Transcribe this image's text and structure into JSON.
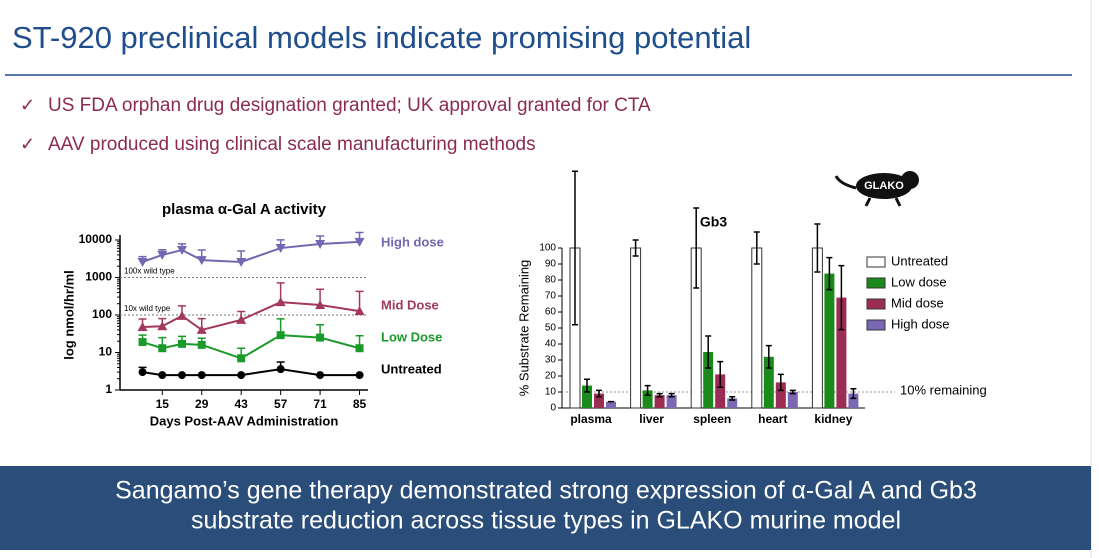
{
  "header": {
    "title": "ST-920 preclinical models indicate promising potential"
  },
  "bullets": [
    "US FDA orphan drug designation granted; UK approval granted for CTA",
    "AAV produced using clinical scale manufacturing methods"
  ],
  "icon_label": "GLAKO",
  "banner": {
    "lines": [
      "Sangamo’s gene therapy demonstrated strong expression of α-Gal A and Gb3",
      "substrate reduction across tissue types in GLAKO murine model"
    ]
  },
  "chart_data": [
    {
      "type": "line",
      "title": "plasma α-Gal A activity",
      "ylabel": "log nmol/hr/ml",
      "xlabel": "Days Post-AAV Administration",
      "log_y": true,
      "x": [
        8,
        15,
        22,
        29,
        43,
        57,
        71,
        85
      ],
      "xlim": [
        0,
        88
      ],
      "xticks": [
        15,
        29,
        43,
        57,
        71,
        85
      ],
      "ylim": [
        1,
        10000
      ],
      "yticks": [
        1,
        10,
        100,
        1000,
        10000
      ],
      "reference_lines": [
        {
          "value": 1000,
          "label": "100x wild type"
        },
        {
          "value": 100,
          "label": "10x wild type"
        }
      ],
      "series": [
        {
          "name": "High dose",
          "color": "#7466b0",
          "marker": "triangle-down",
          "values": [
            2600,
            4000,
            5400,
            2900,
            2600,
            6100,
            7800,
            8900
          ],
          "errors": [
            1000,
            1500,
            2500,
            2500,
            2500,
            4000,
            5000,
            7000
          ]
        },
        {
          "name": "Mid Dose",
          "color": "#a3385f",
          "marker": "triangle",
          "values": [
            48,
            50,
            95,
            40,
            74,
            220,
            185,
            127
          ],
          "errors": [
            30,
            30,
            80,
            40,
            50,
            500,
            300,
            300
          ]
        },
        {
          "name": "Low Dose",
          "color": "#1a9a2a",
          "marker": "square",
          "values": [
            19,
            13,
            17,
            16,
            7,
            29,
            25,
            13
          ],
          "errors": [
            10,
            12,
            10,
            8,
            6,
            50,
            30,
            15
          ]
        },
        {
          "name": "Untreated",
          "color": "#000000",
          "marker": "circle",
          "values": [
            3,
            2.5,
            2.5,
            2.5,
            2.5,
            3.6,
            2.5,
            2.5
          ],
          "errors": [
            1,
            0,
            0,
            0,
            0,
            2,
            0,
            0
          ]
        }
      ]
    },
    {
      "type": "bar",
      "title": "Gb3",
      "ylabel": "% Substrate Remaining",
      "categories": [
        "plasma",
        "liver",
        "spleen",
        "heart",
        "kidney"
      ],
      "ylim": [
        0,
        100
      ],
      "yticks": [
        0,
        10,
        20,
        30,
        40,
        50,
        60,
        70,
        80,
        90,
        100
      ],
      "reference_lines": [
        {
          "value": 10,
          "label": "10% remaining"
        }
      ],
      "series": [
        {
          "name": "Untreated",
          "color": "#ffffff",
          "values": [
            100,
            100,
            100,
            100,
            100
          ],
          "errors": [
            48,
            5,
            25,
            10,
            15
          ]
        },
        {
          "name": "Low dose",
          "color": "#1a8a1a",
          "values": [
            14,
            11,
            35,
            32,
            84
          ],
          "errors": [
            4,
            3,
            10,
            7,
            10
          ]
        },
        {
          "name": "Mid dose",
          "color": "#9b2d55",
          "values": [
            9,
            8,
            21,
            16,
            69
          ],
          "errors": [
            2,
            1,
            8,
            5,
            20
          ]
        },
        {
          "name": "High dose",
          "color": "#7b68b3",
          "values": [
            4,
            8,
            6,
            10,
            9
          ],
          "errors": [
            0,
            1,
            1,
            1,
            3
          ]
        }
      ]
    }
  ]
}
